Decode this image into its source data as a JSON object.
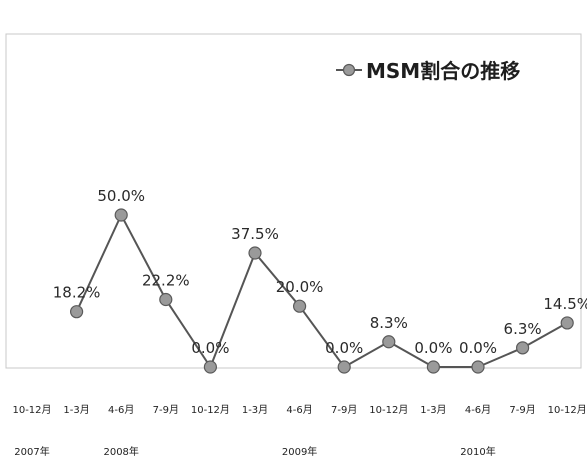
{
  "chart_data": {
    "type": "line",
    "title": "",
    "xlabel": "",
    "ylabel": "",
    "ylim": [
      0,
      60
    ],
    "grid": false,
    "legend_position": "top-right",
    "categories": [
      "10-12月",
      "1-3月",
      "4-6月",
      "7-9月",
      "10-12月",
      "1-3月",
      "4-6月",
      "7-9月",
      "10-12月",
      "1-3月",
      "4-6月",
      "7-9月",
      "10-12月"
    ],
    "category_years": [
      {
        "label": "2007年",
        "index": 0
      },
      {
        "label": "2008年",
        "index": 2
      },
      {
        "label": "2009年",
        "index": 6
      },
      {
        "label": "2010年",
        "index": 10
      }
    ],
    "series": [
      {
        "name": "MSM割合の推移",
        "values": [
          null,
          18.2,
          50.0,
          22.2,
          0.0,
          37.5,
          20.0,
          0.0,
          8.3,
          0.0,
          0.0,
          6.3,
          14.5
        ],
        "labels": [
          "",
          "18.2%",
          "50.0%",
          "22.2%",
          "0.0%",
          "37.5%",
          "20.0%",
          "0.0%",
          "8.3%",
          "0.0%",
          "0.0%",
          "6.3%",
          "14.5%"
        ]
      }
    ],
    "colors": {
      "line": "#555555",
      "marker_fill": "#9a9a9a",
      "marker_stroke": "#5a5a5a",
      "frame": "#c8c8c8"
    }
  }
}
